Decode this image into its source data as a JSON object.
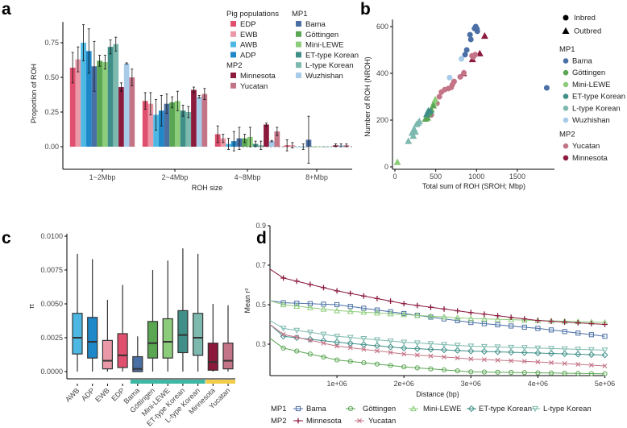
{
  "colors": {
    "EDP": "#e0506e",
    "EWB": "#eb98a8",
    "AWB": "#4db8e4",
    "ADP": "#1f88c9",
    "Bama": "#4a6fa5",
    "Göttingen": "#5aa653",
    "Mini-LEWE": "#8ccc7a",
    "ET-type Korean": "#3f8f88",
    "L-type Korean": "#7db9ae",
    "Wuzhishan": "#a8cbe9",
    "Minnesota": "#8b1a3c",
    "Yucatan": "#c47487",
    "band_MP1": "#3fb8a4",
    "band_MP2": "#f2cd4c"
  },
  "chart_data": [
    {
      "panel": "a",
      "type": "bar",
      "xlabel": "ROH size",
      "ylabel": "Proportion of ROH",
      "ylim": [
        -0.15,
        0.9
      ],
      "yticks": [
        "0.00",
        "0.25",
        "0.50",
        "0.75"
      ],
      "ytick_values": [
        0,
        0.25,
        0.5,
        0.75
      ],
      "categories": [
        "1~2Mbp",
        "2~4Mbp",
        "4~8Mbp",
        "8+Mbp"
      ],
      "legend": {
        "groups": [
          {
            "title": "Pig populations",
            "items": [
              "EDP",
              "EWB",
              "AWB",
              "ADP"
            ]
          },
          {
            "title": "MP2",
            "items": [
              "Minnesota",
              "Yucatan"
            ]
          },
          {
            "title": "MP1",
            "items": [
              "Bama",
              "Göttingen",
              "Mini-LEWE",
              "ET-type Korean",
              "L-type Korean",
              "Wuzhishan"
            ]
          }
        ]
      },
      "series": [
        {
          "name": "EDP",
          "values": [
            0.57,
            0.33,
            0.09,
            0.01
          ],
          "err": [
            0.11,
            0.06,
            0.06,
            0.04
          ]
        },
        {
          "name": "EWB",
          "values": [
            0.63,
            0.31,
            0.06,
            0.01
          ],
          "err": [
            0.09,
            0.08,
            0.03,
            0.02
          ]
        },
        {
          "name": "AWB",
          "values": [
            0.75,
            0.23,
            0.02,
            0.0
          ],
          "err": [
            0.13,
            0.11,
            0.04,
            0.0
          ]
        },
        {
          "name": "ADP",
          "values": [
            0.69,
            0.26,
            0.04,
            0.0
          ],
          "err": [
            0.16,
            0.11,
            0.07,
            0.02
          ]
        },
        {
          "name": "Bama",
          "values": [
            0.58,
            0.31,
            0.06,
            0.05
          ],
          "err": [
            0.18,
            0.07,
            0.08,
            0.17
          ]
        },
        {
          "name": "Göttingen",
          "values": [
            0.62,
            0.32,
            0.06,
            0.0
          ],
          "err": [
            0.04,
            0.04,
            0.03,
            0.0
          ]
        },
        {
          "name": "Mini-LEWE",
          "values": [
            0.61,
            0.33,
            0.07,
            0.0
          ],
          "err": [
            0.05,
            0.07,
            0.07,
            0.0
          ]
        },
        {
          "name": "ET-type Korean",
          "values": [
            0.72,
            0.26,
            0.02,
            0.0
          ],
          "err": [
            0.05,
            0.04,
            0.02,
            0.0
          ]
        },
        {
          "name": "L-type Korean",
          "values": [
            0.74,
            0.25,
            0.01,
            0.0
          ],
          "err": [
            0.05,
            0.04,
            0.03,
            0.0
          ]
        },
        {
          "name": "Minnesota",
          "values": [
            0.43,
            0.41,
            0.16,
            0.01
          ],
          "err": [
            0.03,
            0.02,
            0.01,
            0.01
          ]
        },
        {
          "name": "Wuzhishan",
          "values": [
            0.6,
            0.36,
            0.04,
            0.01
          ],
          "err": [
            0.005,
            0.01,
            0.005,
            0.01
          ]
        },
        {
          "name": "Yucatan",
          "values": [
            0.5,
            0.38,
            0.11,
            0.01
          ],
          "err": [
            0.06,
            0.04,
            0.03,
            0.01
          ]
        }
      ]
    },
    {
      "panel": "b",
      "type": "scatter",
      "xlabel": "Total sum of ROH (SROH; Mbp)",
      "ylabel": "Number of ROH (NROH)",
      "xlim": [
        0,
        1950
      ],
      "ylim": [
        0,
        630
      ],
      "xticks": [
        "0",
        "500",
        "1000",
        "1500"
      ],
      "xtick_values": [
        0,
        500,
        1000,
        1500
      ],
      "yticks": [
        "0",
        "200",
        "400",
        "600"
      ],
      "ytick_values": [
        0,
        200,
        400,
        600
      ],
      "shape_legend": [
        {
          "label": "Inbred",
          "shape": "circle"
        },
        {
          "label": "Outbred",
          "shape": "triangle"
        }
      ],
      "legend": [
        {
          "title": "MP1",
          "items": [
            "Bama",
            "Göttingen",
            "Mini-LEWE",
            "ET-type Korean",
            "L-type Korean",
            "Wuzhishan"
          ]
        },
        {
          "title": "MP2",
          "items": [
            "Yucatan",
            "Minnesota"
          ]
        }
      ],
      "points": [
        {
          "pop": "Bama",
          "shape": "circle",
          "xy": [
            [
              990,
              600
            ],
            [
              1005,
              590
            ],
            [
              1010,
              580
            ],
            [
              975,
              592
            ],
            [
              920,
              565
            ],
            [
              930,
              545
            ],
            [
              880,
              500
            ],
            [
              860,
              480
            ],
            [
              1860,
              338
            ]
          ]
        },
        {
          "pop": "Minnesota",
          "shape": "triangle",
          "xy": [
            [
              1100,
              560
            ],
            [
              1040,
              485
            ],
            [
              950,
              460
            ],
            [
              840,
              400
            ]
          ]
        },
        {
          "pop": "Yucatan",
          "shape": "circle",
          "xy": [
            [
              985,
              480
            ],
            [
              945,
              475
            ],
            [
              845,
              402
            ],
            [
              800,
              385
            ],
            [
              725,
              365
            ],
            [
              705,
              352
            ],
            [
              690,
              340
            ],
            [
              655,
              335
            ],
            [
              610,
              330
            ],
            [
              570,
              320
            ],
            [
              545,
              300
            ],
            [
              515,
              272
            ],
            [
              445,
              222
            ],
            [
              960,
              470
            ]
          ]
        },
        {
          "pop": "Wuzhishan",
          "shape": "circle",
          "xy": [
            [
              815,
              462
            ],
            [
              670,
              382
            ]
          ]
        },
        {
          "pop": "Mini-LEWE",
          "shape": "triangle",
          "xy": [
            [
              495,
              288
            ],
            [
              480,
              275
            ],
            [
              30,
              20
            ]
          ]
        },
        {
          "pop": "Göttingen",
          "shape": "triangle",
          "xy": [
            [
              470,
              262
            ],
            [
              445,
              245
            ],
            [
              400,
              210
            ],
            [
              375,
              205
            ],
            [
              420,
              228
            ]
          ]
        },
        {
          "pop": "ET-type Korean",
          "shape": "triangle",
          "xy": [
            [
              410,
              240
            ],
            [
              390,
              225
            ],
            [
              435,
              238
            ]
          ]
        },
        {
          "pop": "L-type Korean",
          "shape": "triangle",
          "xy": [
            [
              165,
              110
            ],
            [
              265,
              182
            ],
            [
              235,
              162
            ],
            [
              210,
              145
            ],
            [
              225,
              132
            ],
            [
              285,
              188
            ],
            [
              300,
              195
            ],
            [
              250,
              150
            ]
          ]
        }
      ]
    },
    {
      "panel": "c",
      "type": "box",
      "ylabel": "π",
      "ylim": [
        -0.0006,
        0.0105
      ],
      "yticks": [
        "0.0000",
        "0.0025",
        "0.0050",
        "0.0075",
        "0.0100"
      ],
      "ytick_values": [
        0,
        0.0025,
        0.005,
        0.0075,
        0.01
      ],
      "categories": [
        "AWB",
        "ADP",
        "EWB",
        "EDP",
        "Bama",
        "Göttingen",
        "Mini-LEWE",
        "ET-type Korean",
        "L-type Korean",
        "Minnesota",
        "Yucatan"
      ],
      "groups_band": [
        {
          "group": "MP1",
          "from": "Bama",
          "to": "L-type Korean"
        },
        {
          "group": "MP2",
          "from": "Minnesota",
          "to": "Yucatan"
        }
      ],
      "boxes": [
        {
          "min": 0,
          "q1": 0.0013,
          "median": 0.0025,
          "q3": 0.0043,
          "max": 0.0087
        },
        {
          "min": 0,
          "q1": 0.001,
          "median": 0.0022,
          "q3": 0.004,
          "max": 0.0083
        },
        {
          "min": 0,
          "q1": 0.0002,
          "median": 0.0008,
          "q3": 0.0023,
          "max": 0.0053
        },
        {
          "min": 0,
          "q1": 0.0003,
          "median": 0.0012,
          "q3": 0.0028,
          "max": 0.0064
        },
        {
          "min": 0,
          "q1": 0.0,
          "median": 0.0002,
          "q3": 0.0011,
          "max": 0.0026
        },
        {
          "min": 0,
          "q1": 0.001,
          "median": 0.0021,
          "q3": 0.0037,
          "max": 0.0075
        },
        {
          "min": 0,
          "q1": 0.001,
          "median": 0.0022,
          "q3": 0.0039,
          "max": 0.0082
        },
        {
          "min": 0,
          "q1": 0.0014,
          "median": 0.0027,
          "q3": 0.0045,
          "max": 0.0091
        },
        {
          "min": 0,
          "q1": 0.0012,
          "median": 0.0025,
          "q3": 0.0043,
          "max": 0.0087
        },
        {
          "min": 0,
          "q1": 0.0001,
          "median": 0.0007,
          "q3": 0.0021,
          "max": 0.005
        },
        {
          "min": 0,
          "q1": 0.0002,
          "median": 0.0008,
          "q3": 0.0021,
          "max": 0.0049
        }
      ]
    },
    {
      "panel": "d",
      "type": "line",
      "xlabel": "Distance (bp)",
      "ylabel": "Mean r²",
      "xlim": [
        0,
        5000000
      ],
      "ylim": [
        0.137,
        0.9
      ],
      "xticks": [
        "1e+06",
        "2e+06",
        "3e+06",
        "4e+06",
        "5e+06"
      ],
      "xtick_values": [
        1000000,
        2000000,
        3000000,
        4000000,
        5000000
      ],
      "yticks": [
        "0.3",
        "0.5",
        "0.7",
        "0.9"
      ],
      "ytick_values": [
        0.3,
        0.5,
        0.7,
        0.9
      ],
      "x": [
        0,
        200000,
        1000000,
        2000000,
        3000000,
        4000000,
        5000000
      ],
      "legend": [
        {
          "title": "MP1",
          "items": [
            "Bama",
            "Göttingen",
            "Mini-LEWE",
            "ET-type Korean",
            "L-type Korean"
          ]
        },
        {
          "title": "MP2",
          "items": [
            "Minnesota",
            "Yucatan"
          ]
        }
      ],
      "series": [
        {
          "name": "Bama",
          "marker": "square",
          "values": [
            0.52,
            0.51,
            0.5,
            0.455,
            0.41,
            0.38,
            0.34
          ]
        },
        {
          "name": "Göttingen",
          "marker": "circle",
          "values": [
            0.33,
            0.28,
            0.22,
            0.185,
            0.16,
            0.155,
            0.15
          ]
        },
        {
          "name": "Mini-LEWE",
          "marker": "triangle",
          "values": [
            0.52,
            0.5,
            0.47,
            0.45,
            0.43,
            0.42,
            0.41
          ]
        },
        {
          "name": "ET-type Korean",
          "marker": "diamond",
          "values": [
            0.4,
            0.34,
            0.31,
            0.28,
            0.265,
            0.255,
            0.245
          ]
        },
        {
          "name": "L-type Korean",
          "marker": "triangle-down",
          "values": [
            0.42,
            0.38,
            0.34,
            0.31,
            0.29,
            0.28,
            0.27
          ]
        },
        {
          "name": "Minnesota",
          "marker": "plus",
          "values": [
            0.68,
            0.635,
            0.57,
            0.505,
            0.46,
            0.42,
            0.4
          ]
        },
        {
          "name": "Yucatan",
          "marker": "cross",
          "values": [
            0.4,
            0.35,
            0.29,
            0.25,
            0.225,
            0.21,
            0.19
          ]
        }
      ]
    }
  ],
  "panel_letters": [
    "a",
    "b",
    "c",
    "d"
  ]
}
